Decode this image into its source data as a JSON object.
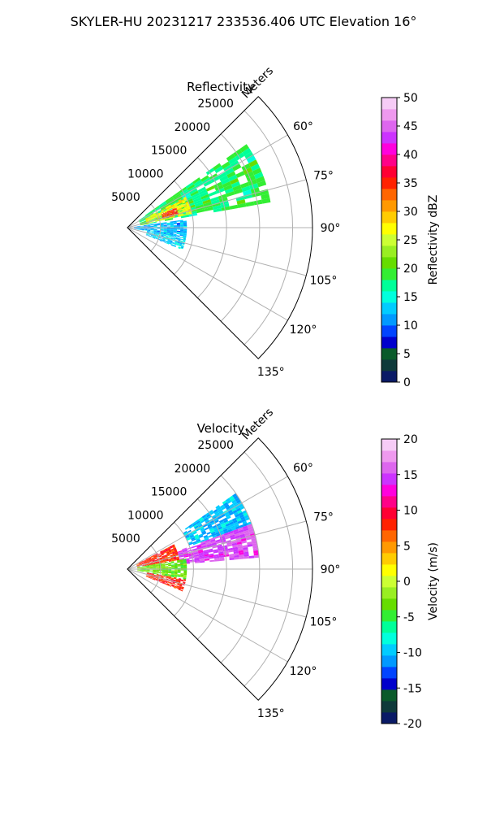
{
  "figure": {
    "title": "SKYLER-HU  20231217  233536.406 UTC Elevation 16°"
  },
  "chart_data": [
    {
      "type": "heatmap",
      "subtype": "polar-sector (PPI)",
      "title": "Reflectivity",
      "range_label": "Meters",
      "range_ticks": [
        5000,
        10000,
        15000,
        20000,
        25000
      ],
      "azimuth_range_deg": [
        45,
        135
      ],
      "azimuth_ticks": [
        60,
        75,
        90,
        105,
        120,
        135
      ],
      "grid": true,
      "colorbar": {
        "label": "Reflectivity dBZ",
        "min": 0,
        "max": 50,
        "ticks": [
          0,
          5,
          10,
          15,
          20,
          25,
          30,
          35,
          40,
          45,
          50
        ],
        "colors": [
          "#0a1a66",
          "#0f3a3a",
          "#0a5a2a",
          "#0000cc",
          "#0044ff",
          "#0099ff",
          "#00ccff",
          "#00ffdd",
          "#00ff99",
          "#33ee33",
          "#66dd00",
          "#99ee22",
          "#ccff33",
          "#ffff00",
          "#ffcc00",
          "#ff9900",
          "#ff6600",
          "#ff2200",
          "#ff0033",
          "#ff0088",
          "#ff00dd",
          "#cc33ff",
          "#dd66ee",
          "#ee99ee",
          "#f6ccf6"
        ]
      },
      "echo_regions": [
        {
          "az_range": [
            55,
            80
          ],
          "range_m": [
            2000,
            22000
          ],
          "value_dbz": 18
        },
        {
          "az_range": [
            62,
            78
          ],
          "range_m": [
            3000,
            10000
          ],
          "value_dbz": 27
        },
        {
          "az_range": [
            68,
            76
          ],
          "range_m": [
            5500,
            8000
          ],
          "value_dbz": 36
        },
        {
          "az_range": [
            82,
            100
          ],
          "range_m": [
            1000,
            9000
          ],
          "value_dbz": 12
        },
        {
          "az_range": [
            100,
            112
          ],
          "range_m": [
            3000,
            9000
          ],
          "value_dbz": 13
        }
      ]
    },
    {
      "type": "heatmap",
      "subtype": "polar-sector (PPI)",
      "title": "Velocity",
      "range_label": "Meters",
      "range_ticks": [
        5000,
        10000,
        15000,
        20000,
        25000
      ],
      "azimuth_range_deg": [
        45,
        135
      ],
      "azimuth_ticks": [
        60,
        75,
        90,
        105,
        120,
        135
      ],
      "grid": true,
      "colorbar": {
        "label": "Velocity (m/s)",
        "min": -20,
        "max": 20,
        "ticks": [
          -20,
          -15,
          -10,
          -5,
          0,
          5,
          10,
          15,
          20
        ],
        "colors": [
          "#0a1a66",
          "#0f3a3a",
          "#0a5a2a",
          "#0000cc",
          "#0044ff",
          "#0099ff",
          "#00ccff",
          "#00ffdd",
          "#00ff99",
          "#33ee33",
          "#66dd00",
          "#99ee22",
          "#ccff33",
          "#ffff00",
          "#ffcc00",
          "#ff9900",
          "#ff6600",
          "#ff2200",
          "#ff0033",
          "#ff0088",
          "#ff00dd",
          "#cc33ff",
          "#dd66ee",
          "#ee99ee",
          "#f6ccf6"
        ]
      },
      "echo_regions": [
        {
          "az_range": [
            55,
            70
          ],
          "range_m": [
            10000,
            20000
          ],
          "value_ms": -10
        },
        {
          "az_range": [
            70,
            85
          ],
          "range_m": [
            8000,
            20000
          ],
          "value_ms": 15
        },
        {
          "az_range": [
            62,
            80
          ],
          "range_m": [
            1500,
            8000
          ],
          "value_ms": 8
        },
        {
          "az_range": [
            80,
            100
          ],
          "range_m": [
            1500,
            9000
          ],
          "value_ms": -3
        },
        {
          "az_range": [
            100,
            112
          ],
          "range_m": [
            3000,
            9000
          ],
          "value_ms": 8
        }
      ]
    }
  ]
}
